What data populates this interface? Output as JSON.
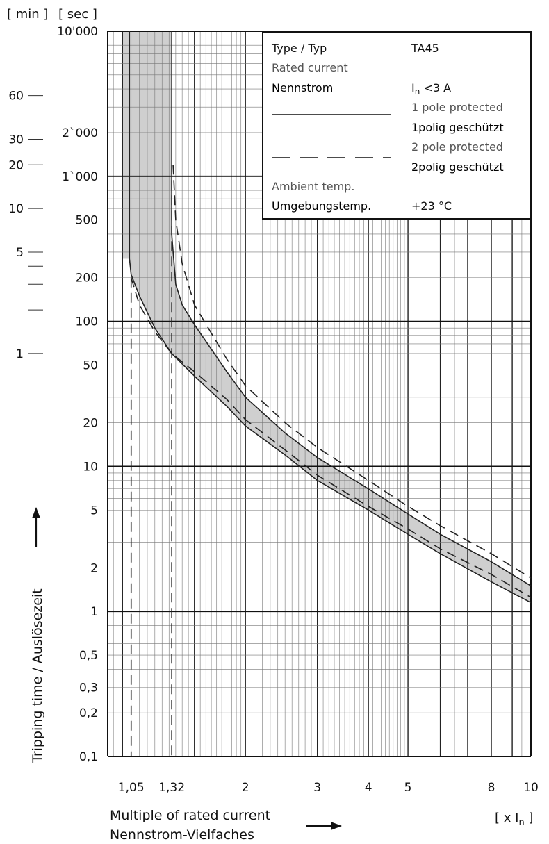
{
  "chart_data": {
    "type": "line",
    "xscale": "log",
    "yscale": "log",
    "xlim": [
      0.92,
      10
    ],
    "ylim": [
      0.1,
      10000
    ],
    "x_ticks": [
      1.05,
      1.32,
      2,
      3,
      4,
      5,
      8,
      10
    ],
    "x_tick_labels": [
      "1,05",
      "1,32",
      "2",
      "3",
      "4",
      "5",
      "8",
      "10"
    ],
    "y_ticks_sec": [
      10000,
      2000,
      1000,
      500,
      200,
      100,
      50,
      20,
      10,
      5,
      2,
      1,
      0.5,
      0.3,
      0.2,
      0.1
    ],
    "y_tick_labels_sec": [
      "10'000",
      "2`000",
      "1`000",
      "500",
      "200",
      "100",
      "50",
      "20",
      "10",
      "5",
      "2",
      "1",
      "0,5",
      "0,3",
      "0,2",
      "0,1"
    ],
    "y_ticks_min": [
      60,
      30,
      20,
      10,
      5,
      1
    ],
    "y_tick_labels_min": [
      "60",
      "30",
      "20",
      "10",
      "5",
      "1"
    ],
    "y_unit_min_label": "[ min ]",
    "y_unit_sec_label": "[ sec ]",
    "x_unit_label": "[ x I",
    "x_unit_sub": "n",
    "x_unit_close": " ]",
    "ylabel": "Tripping time / Auslösezeit",
    "xlabel_line1": "Multiple of rated current",
    "xlabel_line2": "Nennstrom-Vielfaches",
    "grid": true,
    "series": [
      {
        "name": "1 pole protected / 1polig geschützt",
        "style": "solid",
        "lower": {
          "x": [
            1.04,
            1.05,
            1.1,
            1.2,
            1.32,
            1.5,
            1.8,
            2,
            2.5,
            3,
            4,
            5,
            6,
            8,
            10
          ],
          "y": [
            270,
            210,
            150,
            90,
            60,
            42,
            26,
            19,
            12,
            8,
            5,
            3.4,
            2.5,
            1.6,
            1.15
          ]
        },
        "upper": {
          "x": [
            1.32,
            1.35,
            1.4,
            1.5,
            1.8,
            2,
            2.5,
            3,
            4,
            5,
            6,
            8,
            10
          ],
          "y": [
            400,
            180,
            130,
            95,
            45,
            30,
            17,
            11.5,
            7,
            4.7,
            3.4,
            2.2,
            1.5
          ]
        },
        "vertical_band_x": [
          1.0,
          1.32
        ],
        "vertical_band_top_y": 10000
      },
      {
        "name": "2 pole protected / 2polig geschützt",
        "style": "dashed",
        "lower": {
          "x": [
            1.05,
            1.1,
            1.2,
            1.32,
            1.5,
            1.8,
            2,
            2.5,
            3,
            4,
            5,
            6,
            8,
            10
          ],
          "y": [
            200,
            130,
            85,
            60,
            45,
            29,
            21,
            13,
            8.7,
            5.3,
            3.7,
            2.7,
            1.8,
            1.25
          ]
        },
        "upper": {
          "x": [
            1.33,
            1.35,
            1.4,
            1.5,
            1.8,
            2,
            2.5,
            3,
            4,
            5,
            6,
            8,
            10
          ],
          "y": [
            1200,
            500,
            250,
            130,
            55,
            36,
            20,
            13.5,
            8,
            5.3,
            3.9,
            2.5,
            1.7
          ]
        },
        "vertical_dashed_x": [
          1.05,
          1.32
        ]
      }
    ]
  },
  "legend": {
    "type_label": "Type / Typ",
    "type_value": "TA45",
    "rated_label": "Rated current",
    "nenn_label": "Nennstrom",
    "current_I": "I",
    "current_sub": "n",
    "current_rest": " <3 A",
    "pole1_en": "1 pole protected",
    "pole1_de": "1polig geschützt",
    "pole2_en": "2 pole protected",
    "pole2_de": "2polig geschützt",
    "ambient_label": "Ambient  temp.",
    "umgebung_label": "Umgebungstemp.",
    "temp_value": "+23 °C"
  }
}
